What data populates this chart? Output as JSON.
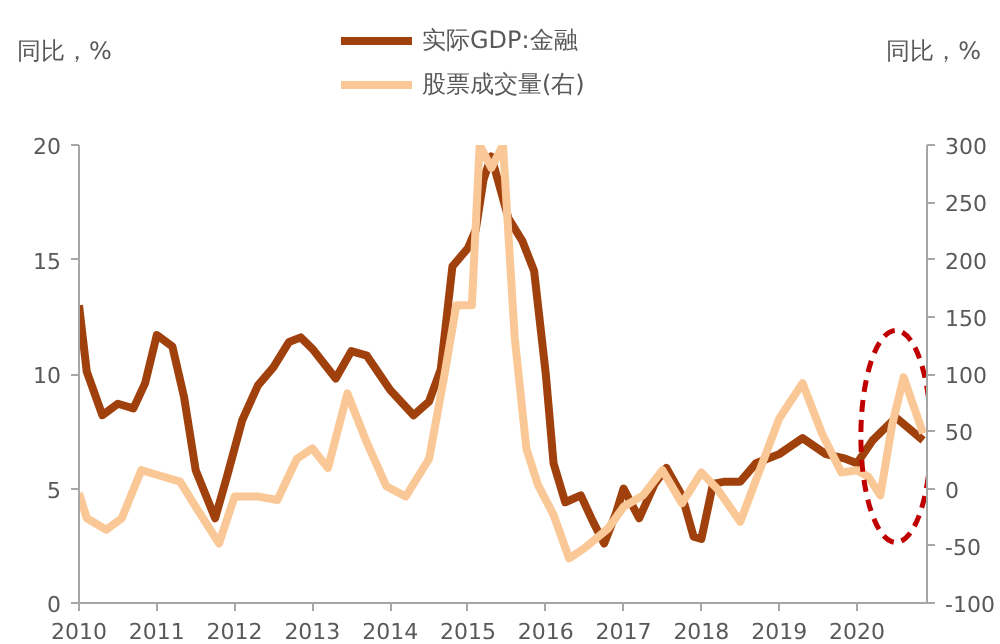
{
  "chart_data": {
    "type": "line",
    "ylabel": "同比，%",
    "y2label": "同比，%",
    "xlim": [
      2010,
      2020.9
    ],
    "xticks": [
      2010,
      2011,
      2012,
      2013,
      2014,
      2015,
      2016,
      2017,
      2018,
      2019,
      2020
    ],
    "ylim": [
      0,
      20
    ],
    "yticks": [
      0,
      5,
      10,
      15,
      20
    ],
    "y2lim": [
      -100,
      300
    ],
    "y2ticks": [
      -100,
      -50,
      0,
      50,
      100,
      150,
      200,
      250,
      300
    ],
    "grid": false,
    "legend": "top",
    "marker": "none",
    "line_style": "solid",
    "series": [
      {
        "name": "实际GDP:金融",
        "color": "#a0410d",
        "x": [
          2010.0,
          2010.1,
          2010.3,
          2010.5,
          2010.7,
          2010.85,
          2011.0,
          2011.2,
          2011.35,
          2011.5,
          2011.75,
          2011.9,
          2012.1,
          2012.3,
          2012.5,
          2012.7,
          2012.85,
          2013.0,
          2013.3,
          2013.5,
          2013.7,
          2014.0,
          2014.3,
          2014.5,
          2014.65,
          2014.8,
          2015.0,
          2015.1,
          2015.2,
          2015.3,
          2015.52,
          2015.7,
          2015.85,
          2016.0,
          2016.1,
          2016.25,
          2016.45,
          2016.6,
          2016.75,
          2016.9,
          2017.0,
          2017.2,
          2017.4,
          2017.55,
          2017.75,
          2017.9,
          2018.0,
          2018.15,
          2018.3,
          2018.5,
          2018.7,
          2019.0,
          2019.3,
          2019.6,
          2019.85,
          2020.0,
          2020.2,
          2020.5,
          2020.85
        ],
        "values": [
          13,
          10.1,
          8.2,
          8.7,
          8.5,
          9.6,
          11.7,
          11.2,
          9,
          5.8,
          3.7,
          5.5,
          8,
          9.5,
          10.3,
          11.4,
          11.6,
          11.1,
          9.8,
          11,
          10.8,
          9.3,
          8.2,
          8.8,
          10.2,
          14.7,
          15.5,
          16.3,
          18.5,
          19.5,
          16.8,
          15.8,
          14.5,
          10,
          6.1,
          4.4,
          4.7,
          3.6,
          2.6,
          3.9,
          5,
          3.7,
          5.2,
          5.9,
          4.7,
          2.9,
          2.8,
          5.2,
          5.3,
          5.3,
          6.1,
          6.5,
          7.2,
          6.5,
          6.3,
          6.1,
          7.1,
          8.1,
          7.1
        ]
      },
      {
        "name": "股票成交量(右)",
        "color": "#fac896",
        "axis": "y2",
        "x": [
          2010.0,
          2010.1,
          2010.35,
          2010.55,
          2010.8,
          2011.0,
          2011.3,
          2011.5,
          2011.8,
          2012.0,
          2012.3,
          2012.55,
          2012.8,
          2013.0,
          2013.2,
          2013.45,
          2013.7,
          2013.95,
          2014.2,
          2014.5,
          2014.7,
          2014.85,
          2015.05,
          2015.15,
          2015.3,
          2015.45,
          2015.6,
          2015.75,
          2015.9,
          2016.1,
          2016.3,
          2016.5,
          2016.8,
          2017.0,
          2017.25,
          2017.5,
          2017.75,
          2018.0,
          2018.2,
          2018.5,
          2018.75,
          2019.0,
          2019.3,
          2019.55,
          2019.8,
          2020.0,
          2020.15,
          2020.3,
          2020.45,
          2020.6,
          2020.85
        ],
        "values": [
          -4,
          -26,
          -36,
          -26,
          16,
          12,
          6,
          -16,
          -48,
          -7,
          -7,
          -10,
          26,
          35,
          18,
          83,
          40,
          2,
          -7,
          26,
          100,
          160,
          160,
          300,
          280,
          300,
          132,
          35,
          3,
          -23,
          -61,
          -52,
          -35,
          -16,
          -6,
          16,
          -13,
          14,
          0,
          -29,
          16,
          61,
          92,
          48,
          14,
          16,
          10,
          -6,
          55,
          97,
          48
        ]
      }
    ]
  }
}
